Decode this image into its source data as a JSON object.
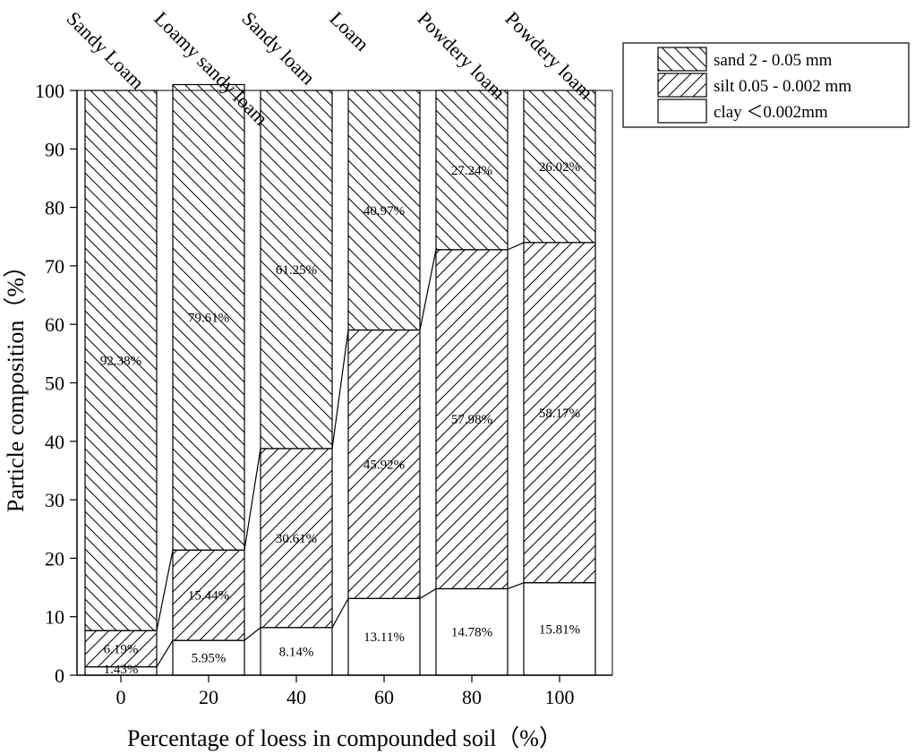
{
  "chart_data": {
    "type": "bar",
    "stacked": true,
    "xlabel": "Percentage of loess in compounded soil（%）",
    "ylabel": "Particle composition（%）",
    "ylim": [
      0,
      100
    ],
    "yticks": [
      0,
      10,
      20,
      30,
      40,
      50,
      60,
      70,
      80,
      90,
      100
    ],
    "categories": [
      "0",
      "20",
      "40",
      "60",
      "80",
      "100"
    ],
    "soil_types": [
      "Sandy Loam",
      "Loamy sandy loam",
      "Sandy loam",
      "Loam",
      "Powdery loam",
      "Powdery loam"
    ],
    "series": [
      {
        "name": "clay ＜0.002mm",
        "pattern": "none",
        "values": [
          1.43,
          5.95,
          8.14,
          13.11,
          14.78,
          15.81
        ],
        "labels": [
          "1.43%",
          "5.95%",
          "8.14%",
          "13.11%",
          "14.78%",
          "15.81%"
        ]
      },
      {
        "name": "silt 0.05 - 0.002 mm",
        "pattern": "forward-hatch",
        "values": [
          6.19,
          15.44,
          30.61,
          45.92,
          57.98,
          58.17
        ],
        "labels": [
          "6.19%",
          "15.44%",
          "30.61%",
          "45.92%",
          "57.98%",
          "58.17%"
        ]
      },
      {
        "name": "sand 2 - 0.05 mm",
        "pattern": "back-hatch",
        "values": [
          92.38,
          79.61,
          61.25,
          40.97,
          27.24,
          26.02
        ],
        "labels": [
          "92.38%",
          "79.61%",
          "61.25%",
          "40.97%",
          "27.24%",
          "26.02%"
        ]
      }
    ],
    "legend_order": [
      "sand 2 - 0.05 mm",
      "silt 0.05 - 0.002 mm",
      "clay ＜0.002mm"
    ],
    "legend_position": "top-right",
    "grid": false
  }
}
